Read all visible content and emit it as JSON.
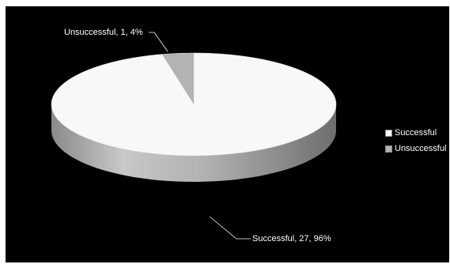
{
  "chart_data": {
    "type": "pie",
    "title": "",
    "three_d": true,
    "legend_position": "right",
    "categories": [
      "Successful",
      "Unsuccessful"
    ],
    "values": [
      27,
      1
    ],
    "percentages": [
      96,
      4
    ],
    "data_labels": [
      "Successful, 27, 96%",
      "Unsuccessful, 1, 4%"
    ],
    "colors": [
      "#f8f8f8",
      "#b3b3b3"
    ],
    "background": "#000000"
  }
}
